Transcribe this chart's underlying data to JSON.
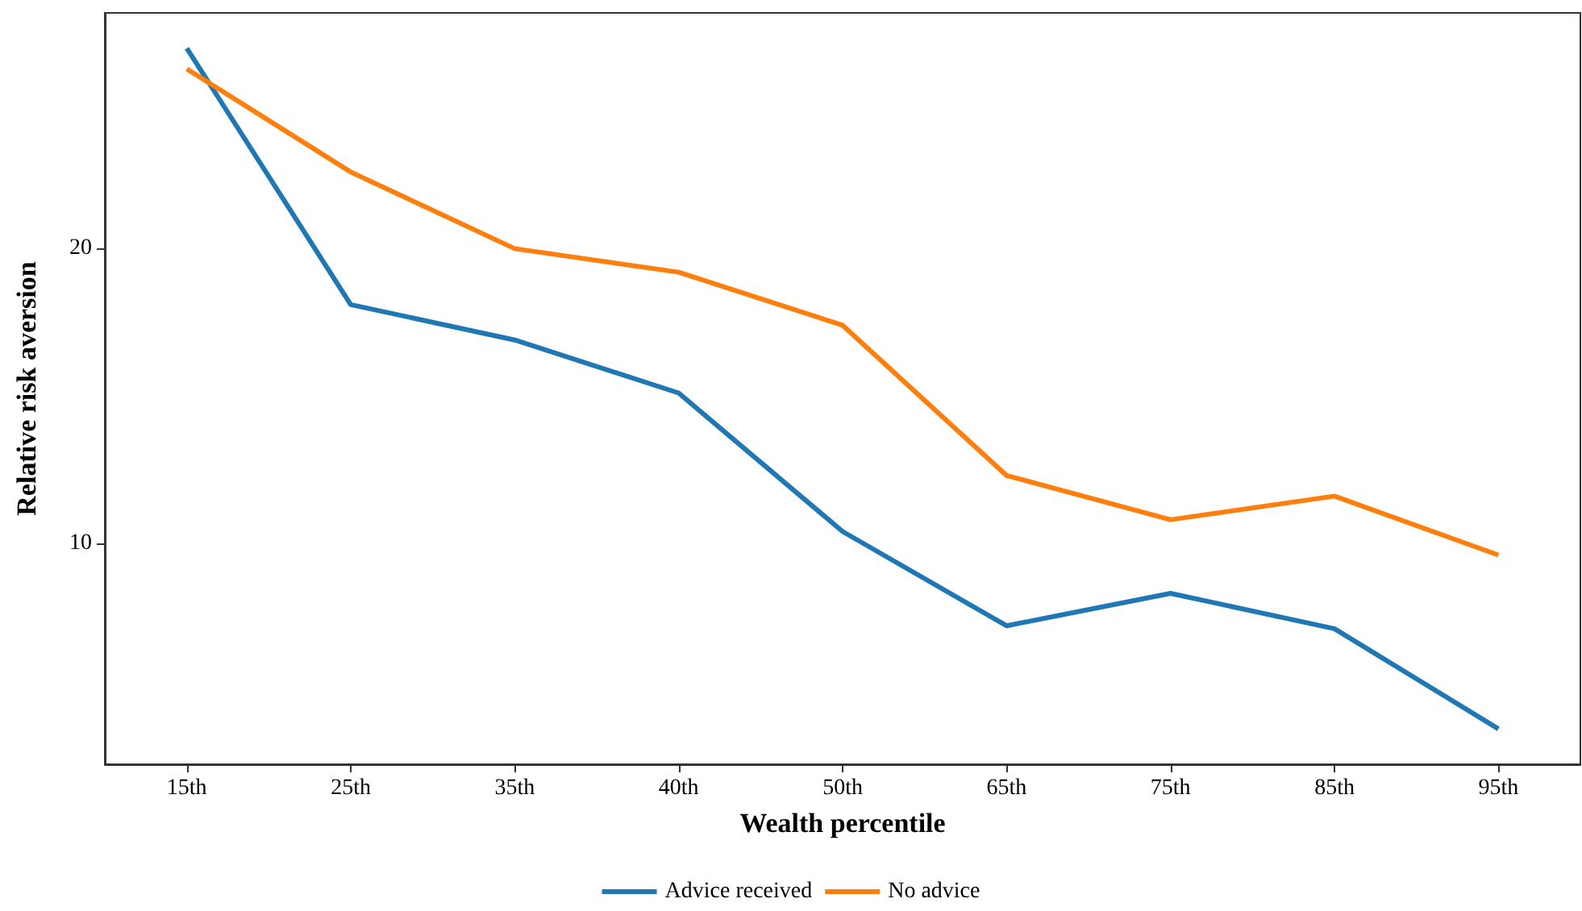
{
  "chart_data": {
    "type": "line",
    "xlabel": "Wealth percentile",
    "ylabel": "Relative risk aversion",
    "categories": [
      "15th",
      "25th",
      "35th",
      "40th",
      "50th",
      "65th",
      "75th",
      "85th",
      "95th"
    ],
    "series": [
      {
        "name": "Advice received",
        "color": "#1f77b4",
        "values": [
          26.8,
          18.1,
          16.9,
          15.1,
          10.4,
          7.2,
          8.3,
          7.1,
          3.7
        ]
      },
      {
        "name": "No advice",
        "color": "#ff7f0e",
        "values": [
          26.1,
          22.6,
          20.0,
          19.2,
          17.4,
          12.3,
          10.8,
          11.6,
          9.6
        ]
      }
    ],
    "ylim": [
      2.5,
      28
    ],
    "yticks": [
      10,
      20
    ],
    "grid": false,
    "legend": "bottom",
    "marker": "none",
    "line_style": "solid"
  }
}
